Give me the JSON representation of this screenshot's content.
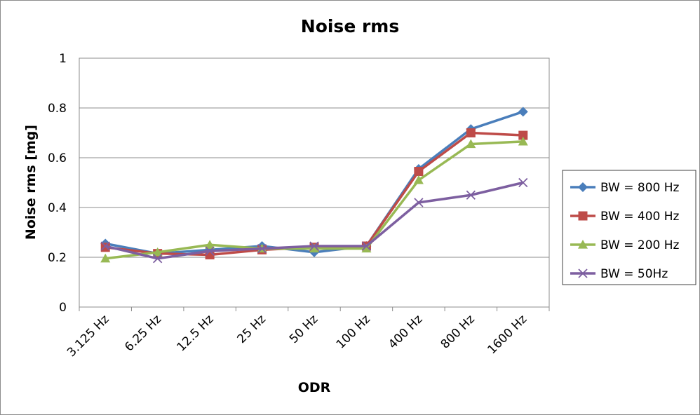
{
  "chart_data": {
    "type": "line",
    "title": "Noise rms",
    "xlabel": "ODR",
    "ylabel": "Noise rms [mg]",
    "ylim": [
      0,
      1
    ],
    "yticks": [
      "0",
      "0.2",
      "0.4",
      "0.6",
      "0.8",
      "1"
    ],
    "categories": [
      "3.125 Hz",
      "6.25 Hz",
      "12.5 Hz",
      "25 Hz",
      "50 Hz",
      "100 Hz",
      "400 Hz",
      "800 Hz",
      "1600 Hz"
    ],
    "grid": "horizontal",
    "legend_position": "right",
    "series": [
      {
        "name": "BW = 800 Hz",
        "color": "#4a7ebb",
        "marker": "diamond",
        "values": [
          0.255,
          0.215,
          0.23,
          0.245,
          0.22,
          0.245,
          0.555,
          0.715,
          0.785
        ]
      },
      {
        "name": "BW = 400 Hz",
        "color": "#be4b48",
        "marker": "square",
        "values": [
          0.24,
          0.215,
          0.21,
          0.23,
          0.24,
          0.245,
          0.545,
          0.7,
          0.69
        ]
      },
      {
        "name": "BW = 200 Hz",
        "color": "#98b954",
        "marker": "triangle",
        "values": [
          0.195,
          0.22,
          0.25,
          0.235,
          0.235,
          0.235,
          0.51,
          0.655,
          0.665
        ]
      },
      {
        "name": "BW = 50Hz",
        "color": "#7d5fa0",
        "marker": "x",
        "values": [
          0.245,
          0.195,
          0.225,
          0.235,
          0.245,
          0.245,
          0.42,
          0.45,
          0.5
        ]
      }
    ]
  }
}
